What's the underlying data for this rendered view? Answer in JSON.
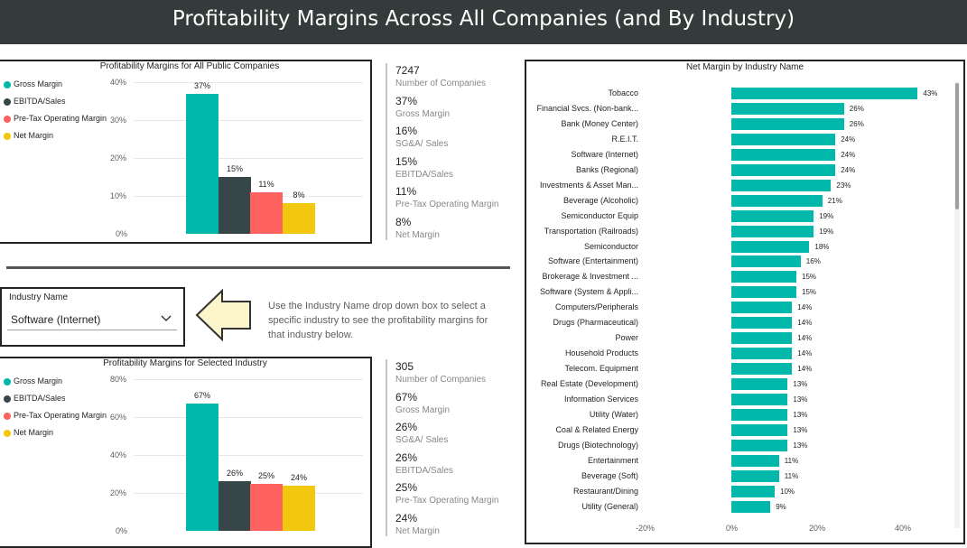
{
  "header": {
    "title": "Profitability Margins Across All Companies (and By Industry)"
  },
  "colors": {
    "gross": "#01b8aa",
    "ebitda": "#374649",
    "pretax": "#fd625e",
    "net": "#f2c80f",
    "industry_bar": "#01b8aa"
  },
  "all_companies": {
    "title": "Profitability Margins for All Public Companies",
    "legend": [
      "Gross Margin",
      "EBITDA/Sales",
      "Pre-Tax Operating Margin",
      "Net Margin"
    ],
    "yticks": [
      "40%",
      "30%",
      "20%",
      "10%",
      "0%"
    ],
    "bar_labels": [
      "37%",
      "15%",
      "11%",
      "8%"
    ],
    "kpis": [
      {
        "value": "7247",
        "label": "Number of Companies"
      },
      {
        "value": "37%",
        "label": "Gross Margin"
      },
      {
        "value": "16%",
        "label": "SG&A/ Sales"
      },
      {
        "value": "15%",
        "label": "EBITDA/Sales"
      },
      {
        "value": "11%",
        "label": "Pre-Tax Operating Margin"
      },
      {
        "value": "8%",
        "label": "Net Margin"
      }
    ]
  },
  "slicer": {
    "label": "Industry Name",
    "value": "Software (Internet)",
    "chevron": "chevron-down-icon"
  },
  "instruction": "Use the Industry Name drop down box to select a specific industry to see the profitability margins for that industry below.",
  "selected_industry": {
    "title": "Profitability Margins for Selected Industry",
    "legend": [
      "Gross Margin",
      "EBITDA/Sales",
      "Pre-Tax Operating Margin",
      "Net Margin"
    ],
    "yticks": [
      "80%",
      "60%",
      "40%",
      "20%",
      "0%"
    ],
    "bar_labels": [
      "67%",
      "26%",
      "25%",
      "24%"
    ],
    "kpis": [
      {
        "value": "305",
        "label": "Number of Companies"
      },
      {
        "value": "67%",
        "label": "Gross Margin"
      },
      {
        "value": "26%",
        "label": "SG&A/ Sales"
      },
      {
        "value": "26%",
        "label": "EBITDA/Sales"
      },
      {
        "value": "25%",
        "label": "Pre-Tax Operating Margin"
      },
      {
        "value": "24%",
        "label": "Net Margin"
      }
    ]
  },
  "industry_chart": {
    "title": "Net Margin by Industry Name",
    "xticks": [
      "-20%",
      "0%",
      "20%",
      "40%"
    ],
    "labels": [
      "43%",
      "26%",
      "26%",
      "24%",
      "24%",
      "24%",
      "23%",
      "21%",
      "19%",
      "19%",
      "18%",
      "16%",
      "15%",
      "15%",
      "14%",
      "14%",
      "14%",
      "14%",
      "14%",
      "13%",
      "13%",
      "13%",
      "13%",
      "13%",
      "11%",
      "11%",
      "10%",
      "9%"
    ]
  },
  "chart_data": [
    {
      "type": "bar",
      "title": "Profitability Margins for All Public Companies",
      "categories": [
        "Gross Margin",
        "EBITDA/Sales",
        "Pre-Tax Operating Margin",
        "Net Margin"
      ],
      "values": [
        37,
        15,
        11,
        8
      ],
      "ylim": [
        0,
        40
      ]
    },
    {
      "type": "bar",
      "title": "Profitability Margins for Selected Industry",
      "categories": [
        "Gross Margin",
        "EBITDA/Sales",
        "Pre-Tax Operating Margin",
        "Net Margin"
      ],
      "values": [
        67,
        26,
        25,
        24
      ],
      "ylim": [
        0,
        80
      ]
    },
    {
      "type": "bar",
      "title": "Net Margin by Industry Name",
      "categories": [
        "Tobacco",
        "Financial Svcs. (Non-bank...",
        "Bank (Money Center)",
        "R.E.I.T.",
        "Software (Internet)",
        "Banks (Regional)",
        "Investments & Asset Man...",
        "Beverage (Alcoholic)",
        "Semiconductor Equip",
        "Transportation (Railroads)",
        "Semiconductor",
        "Software (Entertainment)",
        "Brokerage & Investment ...",
        "Software (System & Appli...",
        "Computers/Peripherals",
        "Drugs (Pharmaceutical)",
        "Power",
        "Household Products",
        "Telecom. Equipment",
        "Real Estate (Development)",
        "Information Services",
        "Utility (Water)",
        "Coal & Related Energy",
        "Drugs (Biotechnology)",
        "Entertainment",
        "Beverage (Soft)",
        "Restaurant/Dining",
        "Utility (General)"
      ],
      "values": [
        43,
        26,
        26,
        24,
        24,
        24,
        23,
        21,
        19,
        19,
        18,
        16,
        15,
        15,
        14,
        14,
        14,
        14,
        14,
        13,
        13,
        13,
        13,
        13,
        11,
        11,
        10,
        9
      ],
      "xlim": [
        -20,
        50
      ]
    }
  ]
}
